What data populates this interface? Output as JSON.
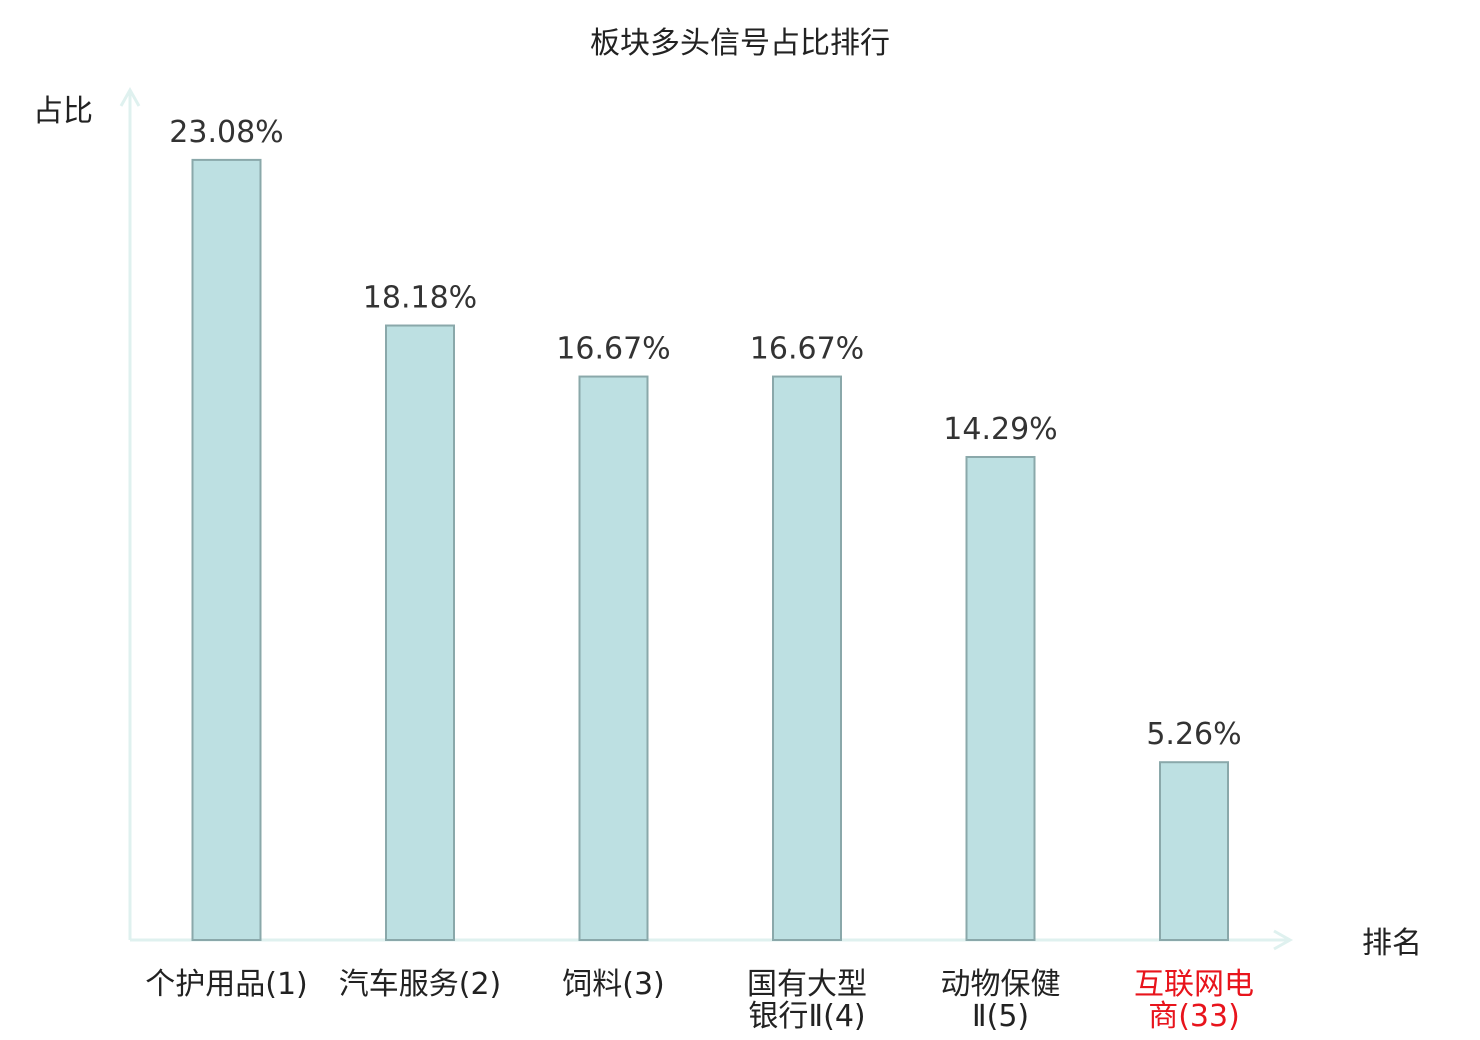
{
  "chart_data": {
    "type": "bar",
    "title": "板块多头信号占比排行",
    "ylabel": "占比",
    "xlabel": "排名",
    "ylim": [
      0,
      25
    ],
    "grid": false,
    "categories": [
      {
        "lines": [
          "个护用品(1)"
        ],
        "highlight": false
      },
      {
        "lines": [
          "汽车服务(2)"
        ],
        "highlight": false
      },
      {
        "lines": [
          "饲料(3)"
        ],
        "highlight": false
      },
      {
        "lines": [
          "国有大型",
          "银行Ⅱ(4)"
        ],
        "highlight": false
      },
      {
        "lines": [
          "动物保健",
          "Ⅱ(5)"
        ],
        "highlight": false
      },
      {
        "lines": [
          "互联网电",
          "商(33)"
        ],
        "highlight": true
      }
    ],
    "values": [
      23.08,
      18.18,
      16.67,
      16.67,
      14.29,
      5.26
    ],
    "value_labels": [
      "23.08%",
      "18.18%",
      "16.67%",
      "16.67%",
      "14.29%",
      "5.26%"
    ],
    "colors": {
      "bar_fill": "#bde0e2",
      "bar_stroke": "#8aa8aa",
      "axis": "#dff1ef",
      "highlight_text": "#e8141c",
      "normal_text": "#222222"
    }
  }
}
